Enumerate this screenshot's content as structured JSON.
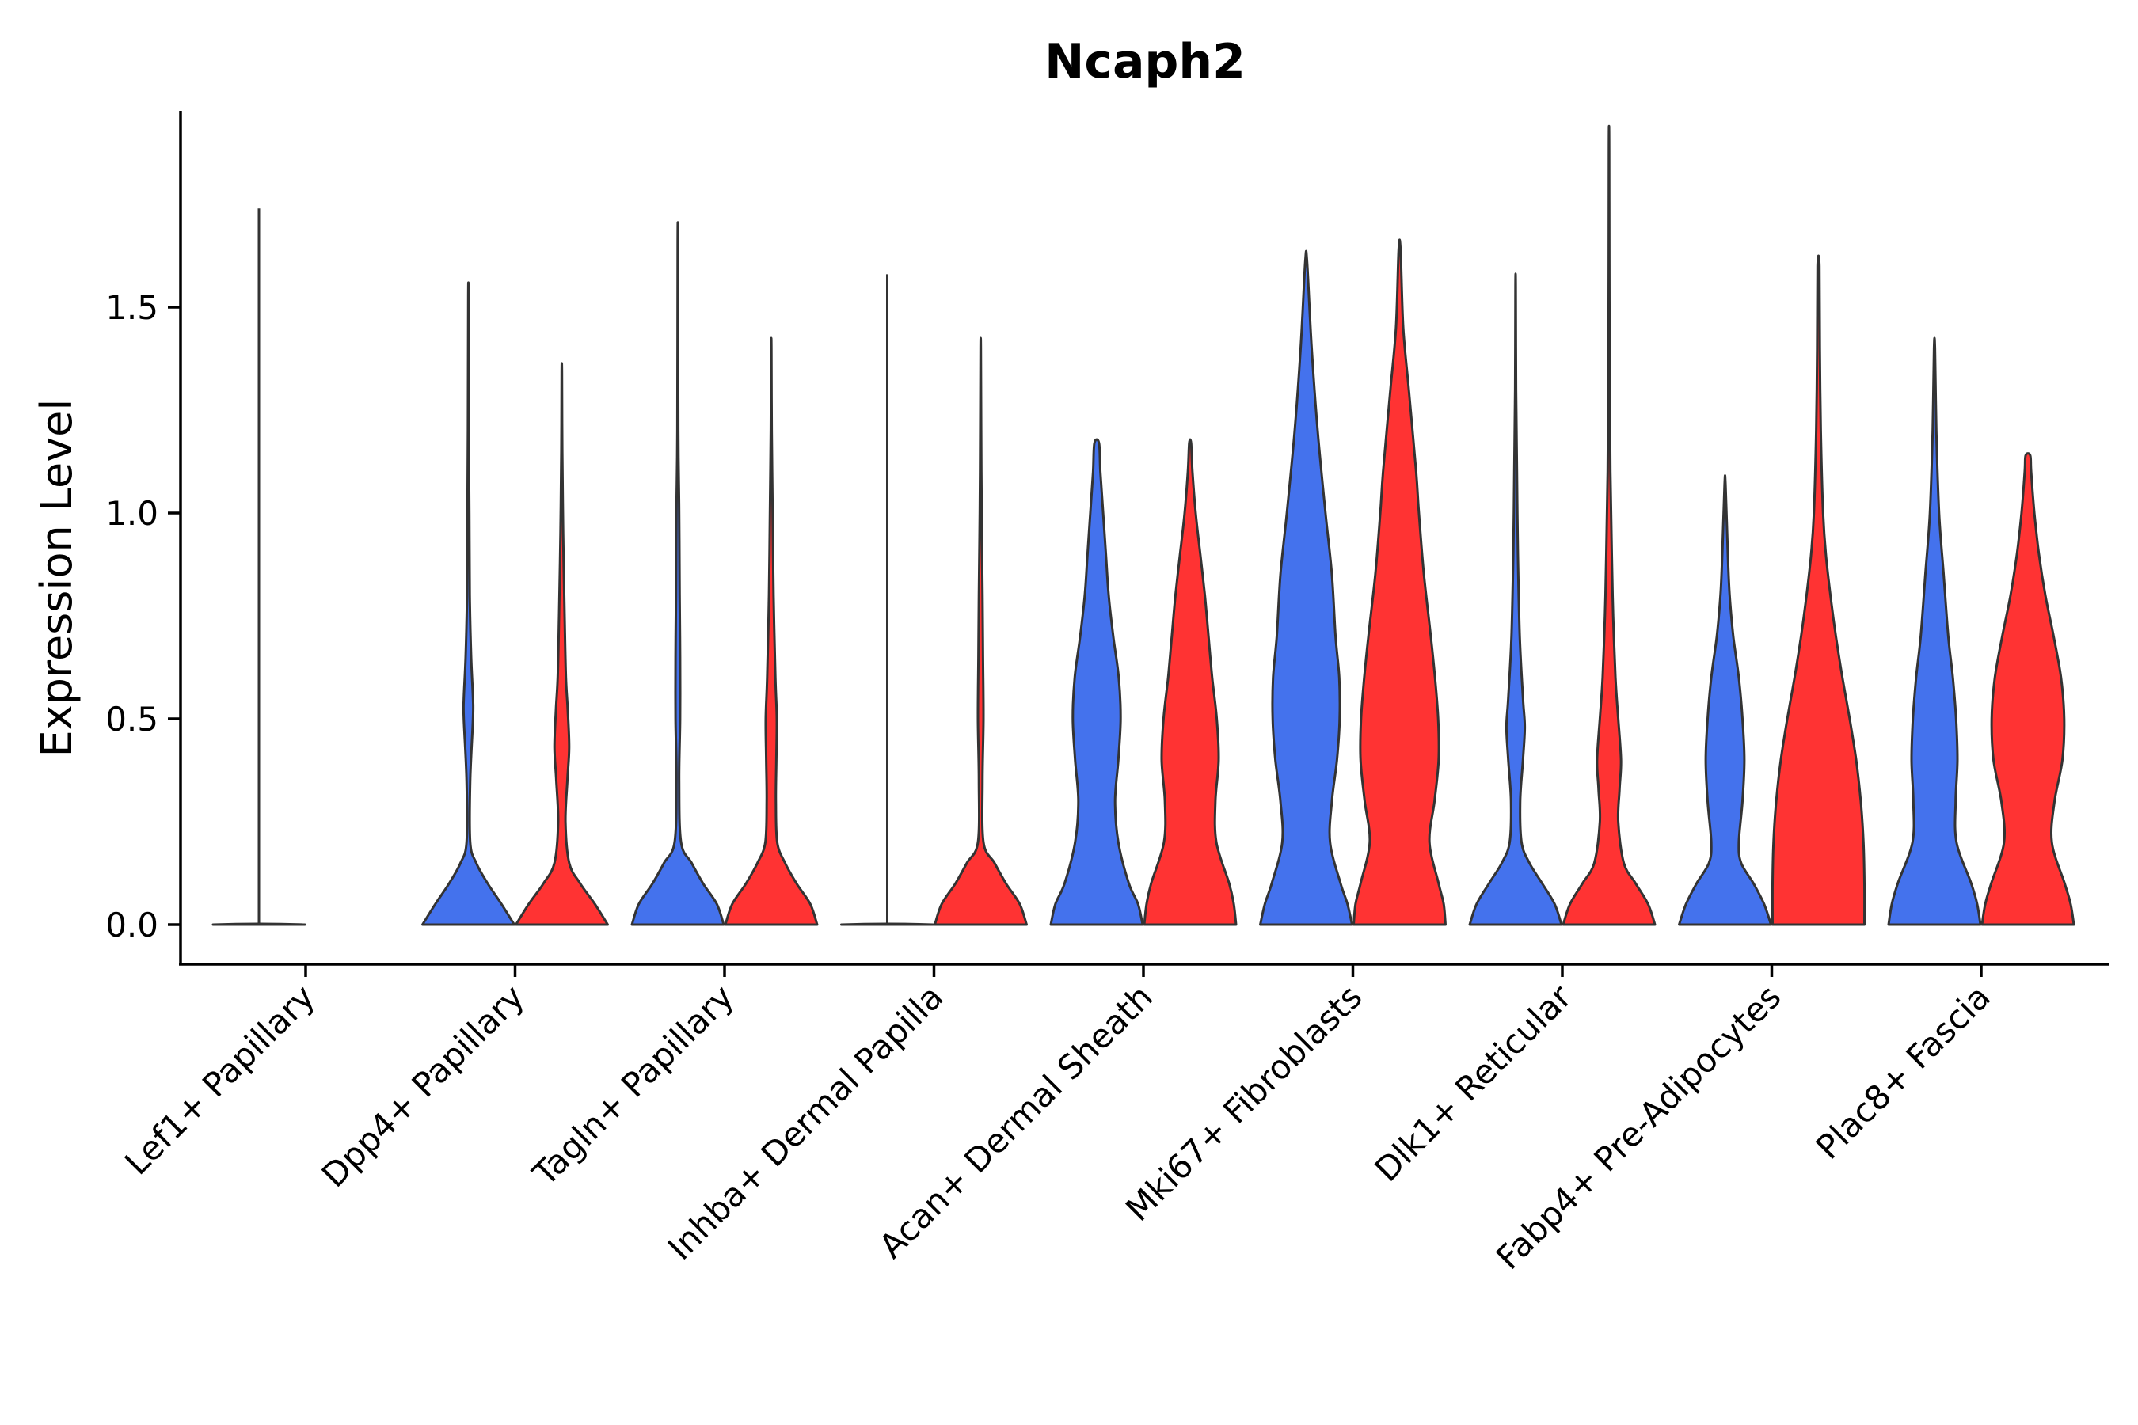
{
  "chart_data": {
    "type": "violin",
    "title": "Ncaph2",
    "xlabel": "",
    "ylabel": "Expression Level",
    "ylim": [
      -0.1,
      1.97
    ],
    "yticks": [
      0.0,
      0.5,
      1.0,
      1.5
    ],
    "ytick_labels": [
      "0.0",
      "0.5",
      "1.0",
      "1.5"
    ],
    "colors": {
      "group_1": "#4472ED",
      "group_2": "#FF3333"
    },
    "categories": [
      "Lef1+ Papillary",
      "Dpp4+ Papillary",
      "Tagln+ Papillary",
      "Inhba+ Dermal Papilla",
      "Acan+ Dermal Sheath",
      "Mki67+ Fibroblasts",
      "Dlk1+ Reticular",
      "Fabp4+ Pre-Adipocytes",
      "Plac8+ Fascia"
    ],
    "violins": [
      {
        "category": "Lef1+ Papillary",
        "group": "group_1",
        "max": 1.74,
        "profile": [
          [
            0,
            1.0
          ],
          [
            0.01,
            0.04
          ],
          [
            0.03,
            0.004
          ],
          [
            0.6,
            0.002
          ],
          [
            1.74,
            0.002
          ]
        ]
      },
      {
        "category": "Dpp4+ Papillary",
        "group": "group_1",
        "max": 1.52,
        "profile": [
          [
            0,
            1.0
          ],
          [
            0.05,
            0.72
          ],
          [
            0.1,
            0.42
          ],
          [
            0.15,
            0.17
          ],
          [
            0.2,
            0.04
          ],
          [
            0.35,
            0.04
          ],
          [
            0.5,
            0.1
          ],
          [
            0.55,
            0.1
          ],
          [
            0.65,
            0.06
          ],
          [
            0.8,
            0.03
          ],
          [
            1.0,
            0.02
          ],
          [
            1.2,
            0.01
          ],
          [
            1.52,
            0.004
          ]
        ]
      },
      {
        "category": "Dpp4+ Papillary",
        "group": "group_2",
        "max": 1.34,
        "profile": [
          [
            0,
            1.0
          ],
          [
            0.05,
            0.72
          ],
          [
            0.1,
            0.4
          ],
          [
            0.15,
            0.16
          ],
          [
            0.25,
            0.08
          ],
          [
            0.35,
            0.12
          ],
          [
            0.43,
            0.16
          ],
          [
            0.52,
            0.13
          ],
          [
            0.6,
            0.09
          ],
          [
            0.75,
            0.06
          ],
          [
            0.95,
            0.03
          ],
          [
            1.15,
            0.01
          ],
          [
            1.34,
            0.004
          ]
        ]
      },
      {
        "category": "Tagln+ Papillary",
        "group": "group_1",
        "max": 1.65,
        "profile": [
          [
            0,
            1.0
          ],
          [
            0.05,
            0.85
          ],
          [
            0.1,
            0.55
          ],
          [
            0.15,
            0.3
          ],
          [
            0.2,
            0.07
          ],
          [
            0.35,
            0.03
          ],
          [
            0.5,
            0.05
          ],
          [
            0.65,
            0.05
          ],
          [
            0.8,
            0.04
          ],
          [
            1.0,
            0.03
          ],
          [
            1.2,
            0.01
          ],
          [
            1.65,
            0.004
          ]
        ]
      },
      {
        "category": "Tagln+ Papillary",
        "group": "group_2",
        "max": 1.4,
        "profile": [
          [
            0,
            1.0
          ],
          [
            0.05,
            0.85
          ],
          [
            0.1,
            0.55
          ],
          [
            0.15,
            0.3
          ],
          [
            0.2,
            0.13
          ],
          [
            0.3,
            0.1
          ],
          [
            0.4,
            0.11
          ],
          [
            0.5,
            0.12
          ],
          [
            0.6,
            0.09
          ],
          [
            0.8,
            0.05
          ],
          [
            1.0,
            0.03
          ],
          [
            1.2,
            0.01
          ],
          [
            1.4,
            0.004
          ]
        ]
      },
      {
        "category": "Inhba+ Dermal Papilla",
        "group": "group_1",
        "max": 1.58,
        "profile": [
          [
            0,
            1.0
          ],
          [
            0.01,
            0.04
          ],
          [
            0.03,
            0.004
          ],
          [
            0.6,
            0.002
          ],
          [
            1.58,
            0.002
          ]
        ]
      },
      {
        "category": "Inhba+ Dermal Papilla",
        "group": "group_2",
        "max": 1.4,
        "profile": [
          [
            0,
            1.0
          ],
          [
            0.05,
            0.85
          ],
          [
            0.1,
            0.55
          ],
          [
            0.15,
            0.3
          ],
          [
            0.2,
            0.06
          ],
          [
            0.35,
            0.04
          ],
          [
            0.5,
            0.06
          ],
          [
            0.65,
            0.05
          ],
          [
            0.8,
            0.04
          ],
          [
            1.0,
            0.02
          ],
          [
            1.2,
            0.01
          ],
          [
            1.4,
            0.004
          ]
        ]
      },
      {
        "category": "Acan+ Dermal Sheath",
        "group": "group_1",
        "max": 1.17,
        "profile": [
          [
            0,
            1.0
          ],
          [
            0.05,
            0.9
          ],
          [
            0.1,
            0.7
          ],
          [
            0.2,
            0.47
          ],
          [
            0.3,
            0.4
          ],
          [
            0.4,
            0.47
          ],
          [
            0.5,
            0.52
          ],
          [
            0.6,
            0.48
          ],
          [
            0.7,
            0.36
          ],
          [
            0.8,
            0.26
          ],
          [
            0.9,
            0.2
          ],
          [
            1.0,
            0.14
          ],
          [
            1.1,
            0.08
          ],
          [
            1.17,
            0.05
          ]
        ]
      },
      {
        "category": "Acan+ Dermal Sheath",
        "group": "group_2",
        "max": 1.17,
        "profile": [
          [
            0,
            1.0
          ],
          [
            0.05,
            0.95
          ],
          [
            0.1,
            0.85
          ],
          [
            0.2,
            0.57
          ],
          [
            0.3,
            0.55
          ],
          [
            0.4,
            0.62
          ],
          [
            0.5,
            0.58
          ],
          [
            0.6,
            0.48
          ],
          [
            0.7,
            0.4
          ],
          [
            0.8,
            0.32
          ],
          [
            0.9,
            0.22
          ],
          [
            1.0,
            0.12
          ],
          [
            1.1,
            0.05
          ],
          [
            1.17,
            0.02
          ]
        ]
      },
      {
        "category": "Mki67+ Fibroblasts",
        "group": "group_1",
        "max": 1.61,
        "profile": [
          [
            0,
            1.0
          ],
          [
            0.05,
            0.9
          ],
          [
            0.1,
            0.75
          ],
          [
            0.2,
            0.52
          ],
          [
            0.3,
            0.56
          ],
          [
            0.4,
            0.67
          ],
          [
            0.5,
            0.73
          ],
          [
            0.6,
            0.72
          ],
          [
            0.7,
            0.64
          ],
          [
            0.85,
            0.56
          ],
          [
            1.0,
            0.42
          ],
          [
            1.2,
            0.25
          ],
          [
            1.4,
            0.12
          ],
          [
            1.61,
            0.02
          ]
        ]
      },
      {
        "category": "Mki67+ Fibroblasts",
        "group": "group_2",
        "max": 1.64,
        "profile": [
          [
            0,
            1.0
          ],
          [
            0.05,
            0.96
          ],
          [
            0.1,
            0.85
          ],
          [
            0.2,
            0.65
          ],
          [
            0.3,
            0.76
          ],
          [
            0.4,
            0.85
          ],
          [
            0.5,
            0.84
          ],
          [
            0.6,
            0.77
          ],
          [
            0.7,
            0.68
          ],
          [
            0.85,
            0.53
          ],
          [
            1.0,
            0.42
          ],
          [
            1.1,
            0.36
          ],
          [
            1.3,
            0.2
          ],
          [
            1.45,
            0.08
          ],
          [
            1.64,
            0.02
          ]
        ]
      },
      {
        "category": "Dlk1+ Reticular",
        "group": "group_1",
        "max": 1.55,
        "profile": [
          [
            0,
            1.0
          ],
          [
            0.05,
            0.85
          ],
          [
            0.1,
            0.58
          ],
          [
            0.15,
            0.3
          ],
          [
            0.2,
            0.13
          ],
          [
            0.3,
            0.1
          ],
          [
            0.4,
            0.16
          ],
          [
            0.48,
            0.2
          ],
          [
            0.55,
            0.16
          ],
          [
            0.7,
            0.09
          ],
          [
            0.9,
            0.05
          ],
          [
            1.1,
            0.03
          ],
          [
            1.3,
            0.01
          ],
          [
            1.55,
            0.004
          ]
        ]
      },
      {
        "category": "Dlk1+ Reticular",
        "group": "group_2",
        "max": 1.88,
        "profile": [
          [
            0,
            1.0
          ],
          [
            0.05,
            0.85
          ],
          [
            0.1,
            0.58
          ],
          [
            0.15,
            0.32
          ],
          [
            0.25,
            0.2
          ],
          [
            0.33,
            0.23
          ],
          [
            0.4,
            0.26
          ],
          [
            0.5,
            0.2
          ],
          [
            0.6,
            0.14
          ],
          [
            0.75,
            0.09
          ],
          [
            0.9,
            0.06
          ],
          [
            1.1,
            0.03
          ],
          [
            1.4,
            0.01
          ],
          [
            1.88,
            0.004
          ]
        ]
      },
      {
        "category": "Fabp4+ Pre-Adipocytes",
        "group": "group_1",
        "max": 1.07,
        "profile": [
          [
            0,
            1.0
          ],
          [
            0.05,
            0.85
          ],
          [
            0.1,
            0.62
          ],
          [
            0.15,
            0.35
          ],
          [
            0.2,
            0.3
          ],
          [
            0.3,
            0.38
          ],
          [
            0.4,
            0.42
          ],
          [
            0.5,
            0.38
          ],
          [
            0.6,
            0.3
          ],
          [
            0.7,
            0.18
          ],
          [
            0.8,
            0.1
          ],
          [
            0.9,
            0.06
          ],
          [
            1.07,
            0.01
          ]
        ]
      },
      {
        "category": "Fabp4+ Pre-Adipocytes",
        "group": "group_2",
        "max": 1.6,
        "profile": [
          [
            0,
            1.0
          ],
          [
            0.1,
            1.0
          ],
          [
            0.2,
            0.98
          ],
          [
            0.3,
            0.92
          ],
          [
            0.4,
            0.82
          ],
          [
            0.5,
            0.68
          ],
          [
            0.6,
            0.52
          ],
          [
            0.7,
            0.38
          ],
          [
            0.8,
            0.26
          ],
          [
            0.9,
            0.16
          ],
          [
            1.0,
            0.1
          ],
          [
            1.2,
            0.05
          ],
          [
            1.4,
            0.03
          ],
          [
            1.6,
            0.02
          ]
        ]
      },
      {
        "category": "Plac8+ Fascia",
        "group": "group_1",
        "max": 1.4,
        "profile": [
          [
            0,
            1.0
          ],
          [
            0.05,
            0.93
          ],
          [
            0.1,
            0.8
          ],
          [
            0.2,
            0.48
          ],
          [
            0.3,
            0.46
          ],
          [
            0.4,
            0.5
          ],
          [
            0.5,
            0.47
          ],
          [
            0.6,
            0.4
          ],
          [
            0.7,
            0.3
          ],
          [
            0.85,
            0.2
          ],
          [
            1.0,
            0.1
          ],
          [
            1.2,
            0.04
          ],
          [
            1.4,
            0.01
          ]
        ]
      },
      {
        "category": "Plac8+ Fascia",
        "group": "group_2",
        "max": 1.14,
        "profile": [
          [
            0,
            1.0
          ],
          [
            0.05,
            0.93
          ],
          [
            0.1,
            0.8
          ],
          [
            0.2,
            0.52
          ],
          [
            0.3,
            0.58
          ],
          [
            0.4,
            0.75
          ],
          [
            0.5,
            0.79
          ],
          [
            0.6,
            0.72
          ],
          [
            0.7,
            0.56
          ],
          [
            0.8,
            0.38
          ],
          [
            0.9,
            0.24
          ],
          [
            1.0,
            0.14
          ],
          [
            1.1,
            0.07
          ],
          [
            1.14,
            0.05
          ]
        ]
      }
    ]
  }
}
